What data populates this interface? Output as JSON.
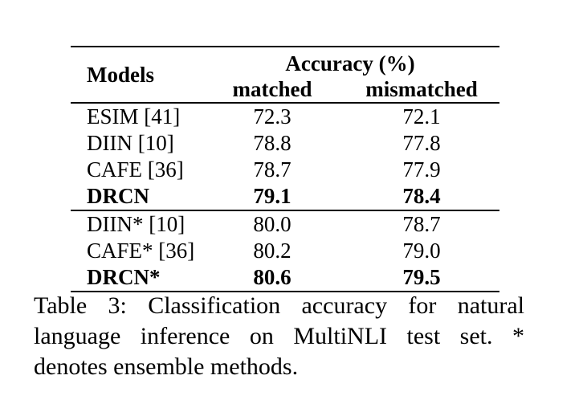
{
  "table": {
    "header": {
      "models_label": "Models",
      "accuracy_label": "Accuracy (%)",
      "matched_label": "matched",
      "mismatched_label": "mismatched"
    },
    "groups": [
      {
        "rows": [
          {
            "model": "ESIM [41]",
            "matched": "72.3",
            "mismatched": "72.1",
            "bold": false
          },
          {
            "model": "DIIN [10]",
            "matched": "78.8",
            "mismatched": "77.8",
            "bold": false
          },
          {
            "model": "CAFE [36]",
            "matched": "78.7",
            "mismatched": "77.9",
            "bold": false
          },
          {
            "model": "DRCN",
            "matched": "79.1",
            "mismatched": "78.4",
            "bold": true
          }
        ]
      },
      {
        "rows": [
          {
            "model": "DIIN* [10]",
            "matched": "80.0",
            "mismatched": "78.7",
            "bold": false
          },
          {
            "model": "CAFE* [36]",
            "matched": "80.2",
            "mismatched": "79.0",
            "bold": false
          },
          {
            "model": "DRCN*",
            "matched": "80.6",
            "mismatched": "79.5",
            "bold": true
          }
        ]
      }
    ]
  },
  "caption": {
    "full_text": "Table 3: Classification accuracy for natural language inference on MultiNLI test set. * denotes ensemble methods.",
    "lines": [
      "Table 3: Classification accuracy for natural",
      "language inference on MultiNLI test set. *",
      "denotes ensemble methods."
    ]
  },
  "colors": {
    "text": "#000000",
    "background": "#ffffff",
    "rule": "#000000"
  }
}
